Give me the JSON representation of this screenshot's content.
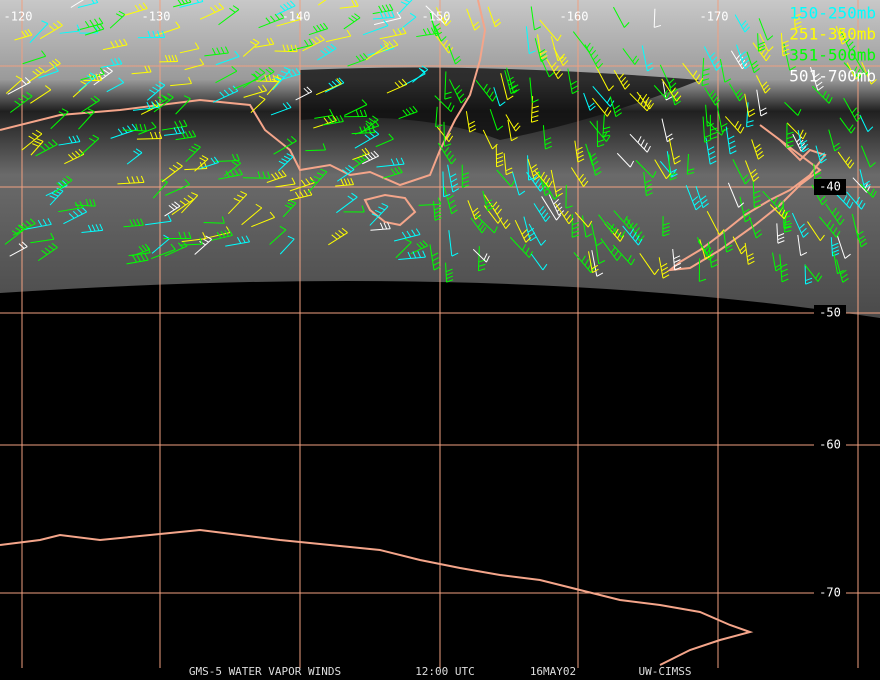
{
  "map": {
    "longitude_labels": [
      -120,
      -130,
      -140,
      -150,
      -160,
      -170
    ],
    "latitude_labels": [
      -40,
      -50,
      -60,
      -70
    ],
    "legend": [
      {
        "label": "150-250mb",
        "color": "#00ffff"
      },
      {
        "label": "251-350mb",
        "color": "#ffff00"
      },
      {
        "label": "351-500mb",
        "color": "#00ff00"
      },
      {
        "label": "501-700mb",
        "color": "#ffffff"
      }
    ],
    "footer": [
      "GMS-5 WATER VAPOR WINDS",
      "12:00 UTC",
      "16MAY02",
      "UW-CIMSS"
    ]
  }
}
